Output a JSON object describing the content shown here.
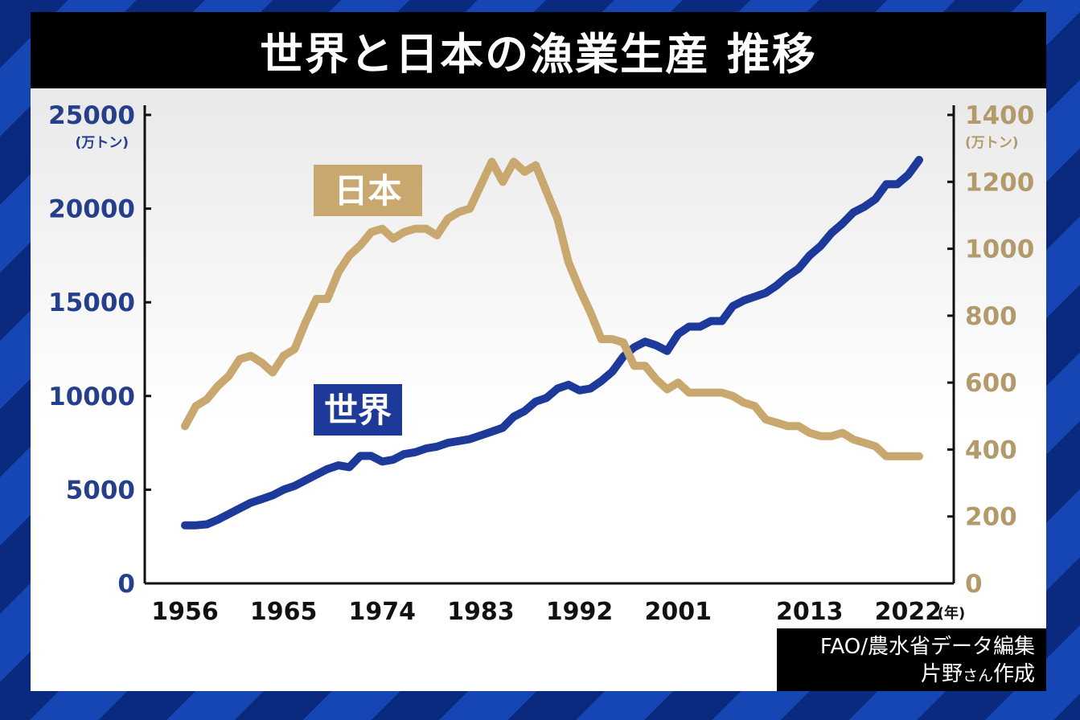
{
  "title": "世界と日本の漁業生産 推移",
  "credit": {
    "line1": "FAO/農水省データ編集",
    "line2_a": "片野",
    "line2_b": "さん",
    "line2_c": "作成"
  },
  "colors": {
    "world": "#1d3a9a",
    "japan": "#c8a86e",
    "left_axis_text": "#253f8c",
    "right_axis_text": "#b39a6a"
  },
  "chart_data": {
    "type": "line",
    "title": "世界と日本の漁業生産 推移",
    "x_unit": "(年)",
    "x_ticks": [
      "1956",
      "1965",
      "1974",
      "1983",
      "1992",
      "2001",
      "2013",
      "2022"
    ],
    "xlim": [
      1956,
      2024
    ],
    "left_axis": {
      "unit": "(万トン)",
      "range": [
        0,
        25000
      ],
      "ticks": [
        "0",
        "5000",
        "10000",
        "15000",
        "20000",
        "25000"
      ]
    },
    "right_axis": {
      "unit": "(万トン)",
      "range": [
        0,
        1400
      ],
      "ticks": [
        "0",
        "200",
        "400",
        "600",
        "800",
        "1000",
        "1200",
        "1400"
      ]
    },
    "series": [
      {
        "name": "世界",
        "axis": "left",
        "x": [
          1956,
          1957,
          1958,
          1959,
          1960,
          1961,
          1962,
          1963,
          1964,
          1965,
          1966,
          1967,
          1968,
          1969,
          1970,
          1971,
          1972,
          1973,
          1974,
          1975,
          1976,
          1977,
          1978,
          1979,
          1980,
          1981,
          1982,
          1983,
          1984,
          1985,
          1986,
          1987,
          1988,
          1989,
          1990,
          1991,
          1992,
          1993,
          1994,
          1995,
          1996,
          1997,
          1998,
          1999,
          2000,
          2001,
          2002,
          2003,
          2004,
          2005,
          2006,
          2007,
          2008,
          2009,
          2010,
          2011,
          2012,
          2013,
          2014,
          2015,
          2016,
          2017,
          2018,
          2019,
          2020,
          2021,
          2022,
          2023
        ],
        "values": [
          3100,
          3100,
          3150,
          3400,
          3700,
          4000,
          4300,
          4500,
          4700,
          5000,
          5200,
          5500,
          5800,
          6100,
          6300,
          6200,
          6800,
          6800,
          6500,
          6600,
          6900,
          7000,
          7200,
          7300,
          7500,
          7600,
          7700,
          7900,
          8100,
          8300,
          8900,
          9200,
          9700,
          9900,
          10400,
          10600,
          10300,
          10400,
          10800,
          11300,
          12100,
          12600,
          12900,
          12700,
          12400,
          13300,
          13700,
          13700,
          14000,
          14000,
          14800,
          15100,
          15300,
          15500,
          15900,
          16400,
          16800,
          17500,
          18000,
          18700,
          19200,
          19800,
          20100,
          20500,
          21300,
          21300,
          21800,
          22600
        ]
      },
      {
        "name": "日本",
        "axis": "right",
        "x": [
          1956,
          1957,
          1958,
          1959,
          1960,
          1961,
          1962,
          1963,
          1964,
          1965,
          1966,
          1967,
          1968,
          1969,
          1970,
          1971,
          1972,
          1973,
          1974,
          1975,
          1976,
          1977,
          1978,
          1979,
          1980,
          1981,
          1982,
          1983,
          1984,
          1985,
          1986,
          1987,
          1988,
          1989,
          1990,
          1991,
          1992,
          1993,
          1994,
          1995,
          1996,
          1997,
          1998,
          1999,
          2000,
          2001,
          2002,
          2003,
          2004,
          2005,
          2006,
          2007,
          2008,
          2009,
          2010,
          2011,
          2012,
          2013,
          2014,
          2015,
          2016,
          2017,
          2018,
          2019,
          2020,
          2021,
          2022,
          2023
        ],
        "values": [
          470,
          530,
          550,
          590,
          620,
          670,
          680,
          660,
          630,
          680,
          700,
          780,
          850,
          850,
          930,
          980,
          1010,
          1050,
          1060,
          1030,
          1050,
          1060,
          1060,
          1040,
          1090,
          1110,
          1120,
          1190,
          1260,
          1200,
          1260,
          1230,
          1250,
          1170,
          1090,
          960,
          880,
          810,
          730,
          730,
          720,
          650,
          650,
          610,
          580,
          600,
          570,
          570,
          570,
          570,
          560,
          540,
          530,
          490,
          480,
          470,
          470,
          450,
          440,
          440,
          450,
          430,
          420,
          410,
          380,
          380,
          380,
          380
        ]
      }
    ],
    "labels": {
      "world": "世界",
      "japan": "日本"
    }
  }
}
